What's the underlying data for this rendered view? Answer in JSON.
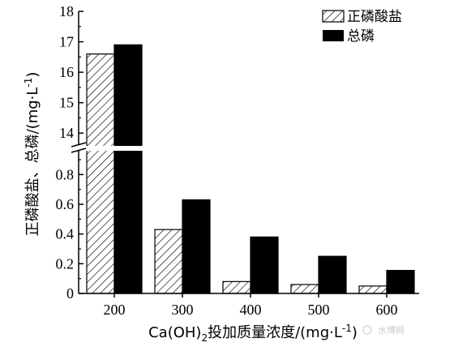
{
  "chart_data": {
    "type": "bar",
    "categories": [
      "200",
      "300",
      "400",
      "500",
      "600"
    ],
    "series": [
      {
        "name": "正磷酸盐",
        "values": [
          16.6,
          0.43,
          0.08,
          0.06,
          0.05
        ],
        "pattern": "hatched"
      },
      {
        "name": "总磷",
        "values": [
          16.9,
          0.63,
          0.38,
          0.25,
          0.155
        ],
        "pattern": "solid"
      }
    ],
    "title": "",
    "xlabel_parts": {
      "pre": "Ca(OH)",
      "sub": "2",
      "post": "投加质量浓度/(mg·L",
      "sup": "-1",
      "end": ")"
    },
    "ylabel_parts": {
      "pre": "正磷酸盐、总磷/(mg·L",
      "sup": "-1",
      "end": ")"
    },
    "axis_break": true,
    "lower_ylim": [
      0,
      0.9
    ],
    "lower_yticks": [
      "0",
      "0.2",
      "0.4",
      "0.6",
      "0.8"
    ],
    "upper_ylim": [
      13.5,
      18
    ],
    "upper_yticks": [
      "14",
      "15",
      "16",
      "17",
      "18"
    ],
    "legend_position": "top-right",
    "grid": false,
    "colors": {
      "solid": "#000000",
      "hatch": "#000000",
      "axis": "#000000"
    }
  },
  "watermark": {
    "text": "水博网"
  }
}
